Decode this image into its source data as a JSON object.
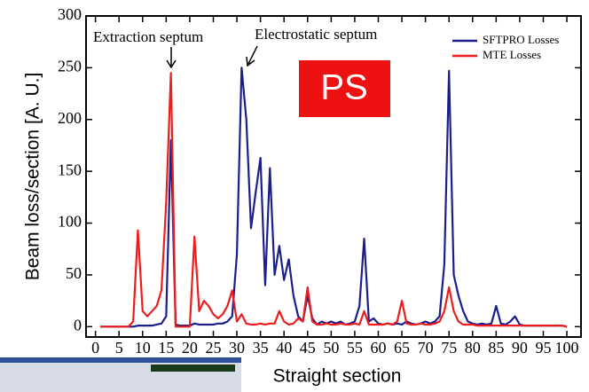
{
  "chart_data": {
    "type": "line",
    "xlabel": "Straight section",
    "ylabel": "Beam loss/section [A. U.]",
    "annotations": [
      "Extraction septum",
      "Electrostatic septum",
      "PS"
    ],
    "x": [
      1,
      2,
      3,
      4,
      5,
      6,
      7,
      8,
      9,
      10,
      11,
      12,
      13,
      14,
      15,
      16,
      17,
      18,
      19,
      20,
      21,
      22,
      23,
      24,
      25,
      26,
      27,
      28,
      29,
      30,
      31,
      32,
      33,
      34,
      35,
      36,
      37,
      38,
      39,
      40,
      41,
      42,
      43,
      44,
      45,
      46,
      47,
      48,
      49,
      50,
      51,
      52,
      53,
      54,
      55,
      56,
      57,
      58,
      59,
      60,
      61,
      62,
      63,
      64,
      65,
      66,
      67,
      68,
      69,
      70,
      71,
      72,
      73,
      74,
      75,
      76,
      77,
      78,
      79,
      80,
      81,
      82,
      83,
      84,
      85,
      86,
      87,
      88,
      89,
      90,
      91,
      92,
      93,
      94,
      95,
      96,
      97,
      98,
      99,
      100
    ],
    "series": [
      {
        "name": "SFTPRO Losses",
        "color": "#1a1f8c",
        "values": [
          0,
          0,
          0,
          0,
          0,
          0,
          0,
          0,
          1,
          1,
          1,
          1,
          2,
          3,
          10,
          180,
          2,
          1,
          1,
          1,
          3,
          2,
          2,
          2,
          2,
          3,
          3,
          5,
          10,
          70,
          250,
          200,
          95,
          130,
          163,
          40,
          153,
          50,
          78,
          45,
          65,
          30,
          10,
          5,
          30,
          8,
          2,
          5,
          3,
          5,
          3,
          5,
          2,
          3,
          5,
          20,
          85,
          5,
          8,
          3,
          2,
          3,
          2,
          3,
          2,
          5,
          3,
          2,
          3,
          5,
          3,
          5,
          10,
          60,
          247,
          50,
          30,
          15,
          5,
          3,
          2,
          3,
          2,
          3,
          20,
          3,
          2,
          5,
          10,
          2,
          1,
          1,
          1,
          1,
          1,
          1,
          1,
          1,
          1,
          0
        ]
      },
      {
        "name": "MTE Losses",
        "color": "#ee1c1c",
        "values": [
          0,
          0,
          0,
          0,
          0,
          0,
          0,
          5,
          93,
          15,
          10,
          15,
          20,
          35,
          120,
          245,
          0,
          0,
          0,
          0,
          87,
          15,
          25,
          20,
          12,
          8,
          12,
          20,
          35,
          5,
          12,
          3,
          2,
          2,
          3,
          2,
          3,
          3,
          15,
          5,
          2,
          3,
          8,
          5,
          38,
          5,
          2,
          2,
          3,
          2,
          2,
          3,
          2,
          2,
          3,
          2,
          15,
          2,
          2,
          2,
          2,
          3,
          2,
          5,
          25,
          3,
          2,
          2,
          3,
          2,
          2,
          3,
          5,
          15,
          38,
          15,
          5,
          2,
          2,
          2,
          1,
          1,
          1,
          1,
          1,
          1,
          1,
          1,
          1,
          1,
          1,
          1,
          1,
          1,
          1,
          1,
          1,
          1,
          1,
          0
        ]
      }
    ],
    "xlim": [
      -2,
      103
    ],
    "ylim": [
      -10,
      300
    ],
    "xticks": [
      0,
      5,
      10,
      15,
      20,
      25,
      30,
      35,
      40,
      45,
      50,
      55,
      60,
      65,
      70,
      75,
      80,
      85,
      90,
      95,
      100
    ],
    "yticks": [
      0,
      50,
      100,
      150,
      200,
      250,
      300
    ],
    "legend": "upper right"
  }
}
